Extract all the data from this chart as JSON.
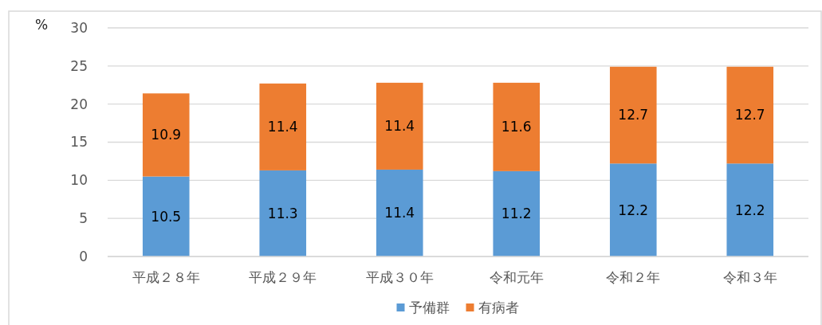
{
  "chart_data": {
    "type": "bar",
    "stacked": true,
    "ylabel": "%",
    "categories": [
      "平成２８年",
      "平成２９年",
      "平成３０年",
      "令和元年",
      "令和２年",
      "令和３年"
    ],
    "series": [
      {
        "name": "予備群",
        "color": "#5b9bd5",
        "values": [
          10.5,
          11.3,
          11.4,
          11.2,
          12.2,
          12.2
        ]
      },
      {
        "name": "有病者",
        "color": "#ed7d31",
        "values": [
          10.9,
          11.4,
          11.4,
          11.6,
          12.7,
          12.7
        ]
      }
    ],
    "ylim": [
      0,
      30
    ],
    "yticks": [
      0,
      5,
      10,
      15,
      20,
      25,
      30
    ],
    "grid": "y",
    "legend": "bottom",
    "data_labels": true
  }
}
